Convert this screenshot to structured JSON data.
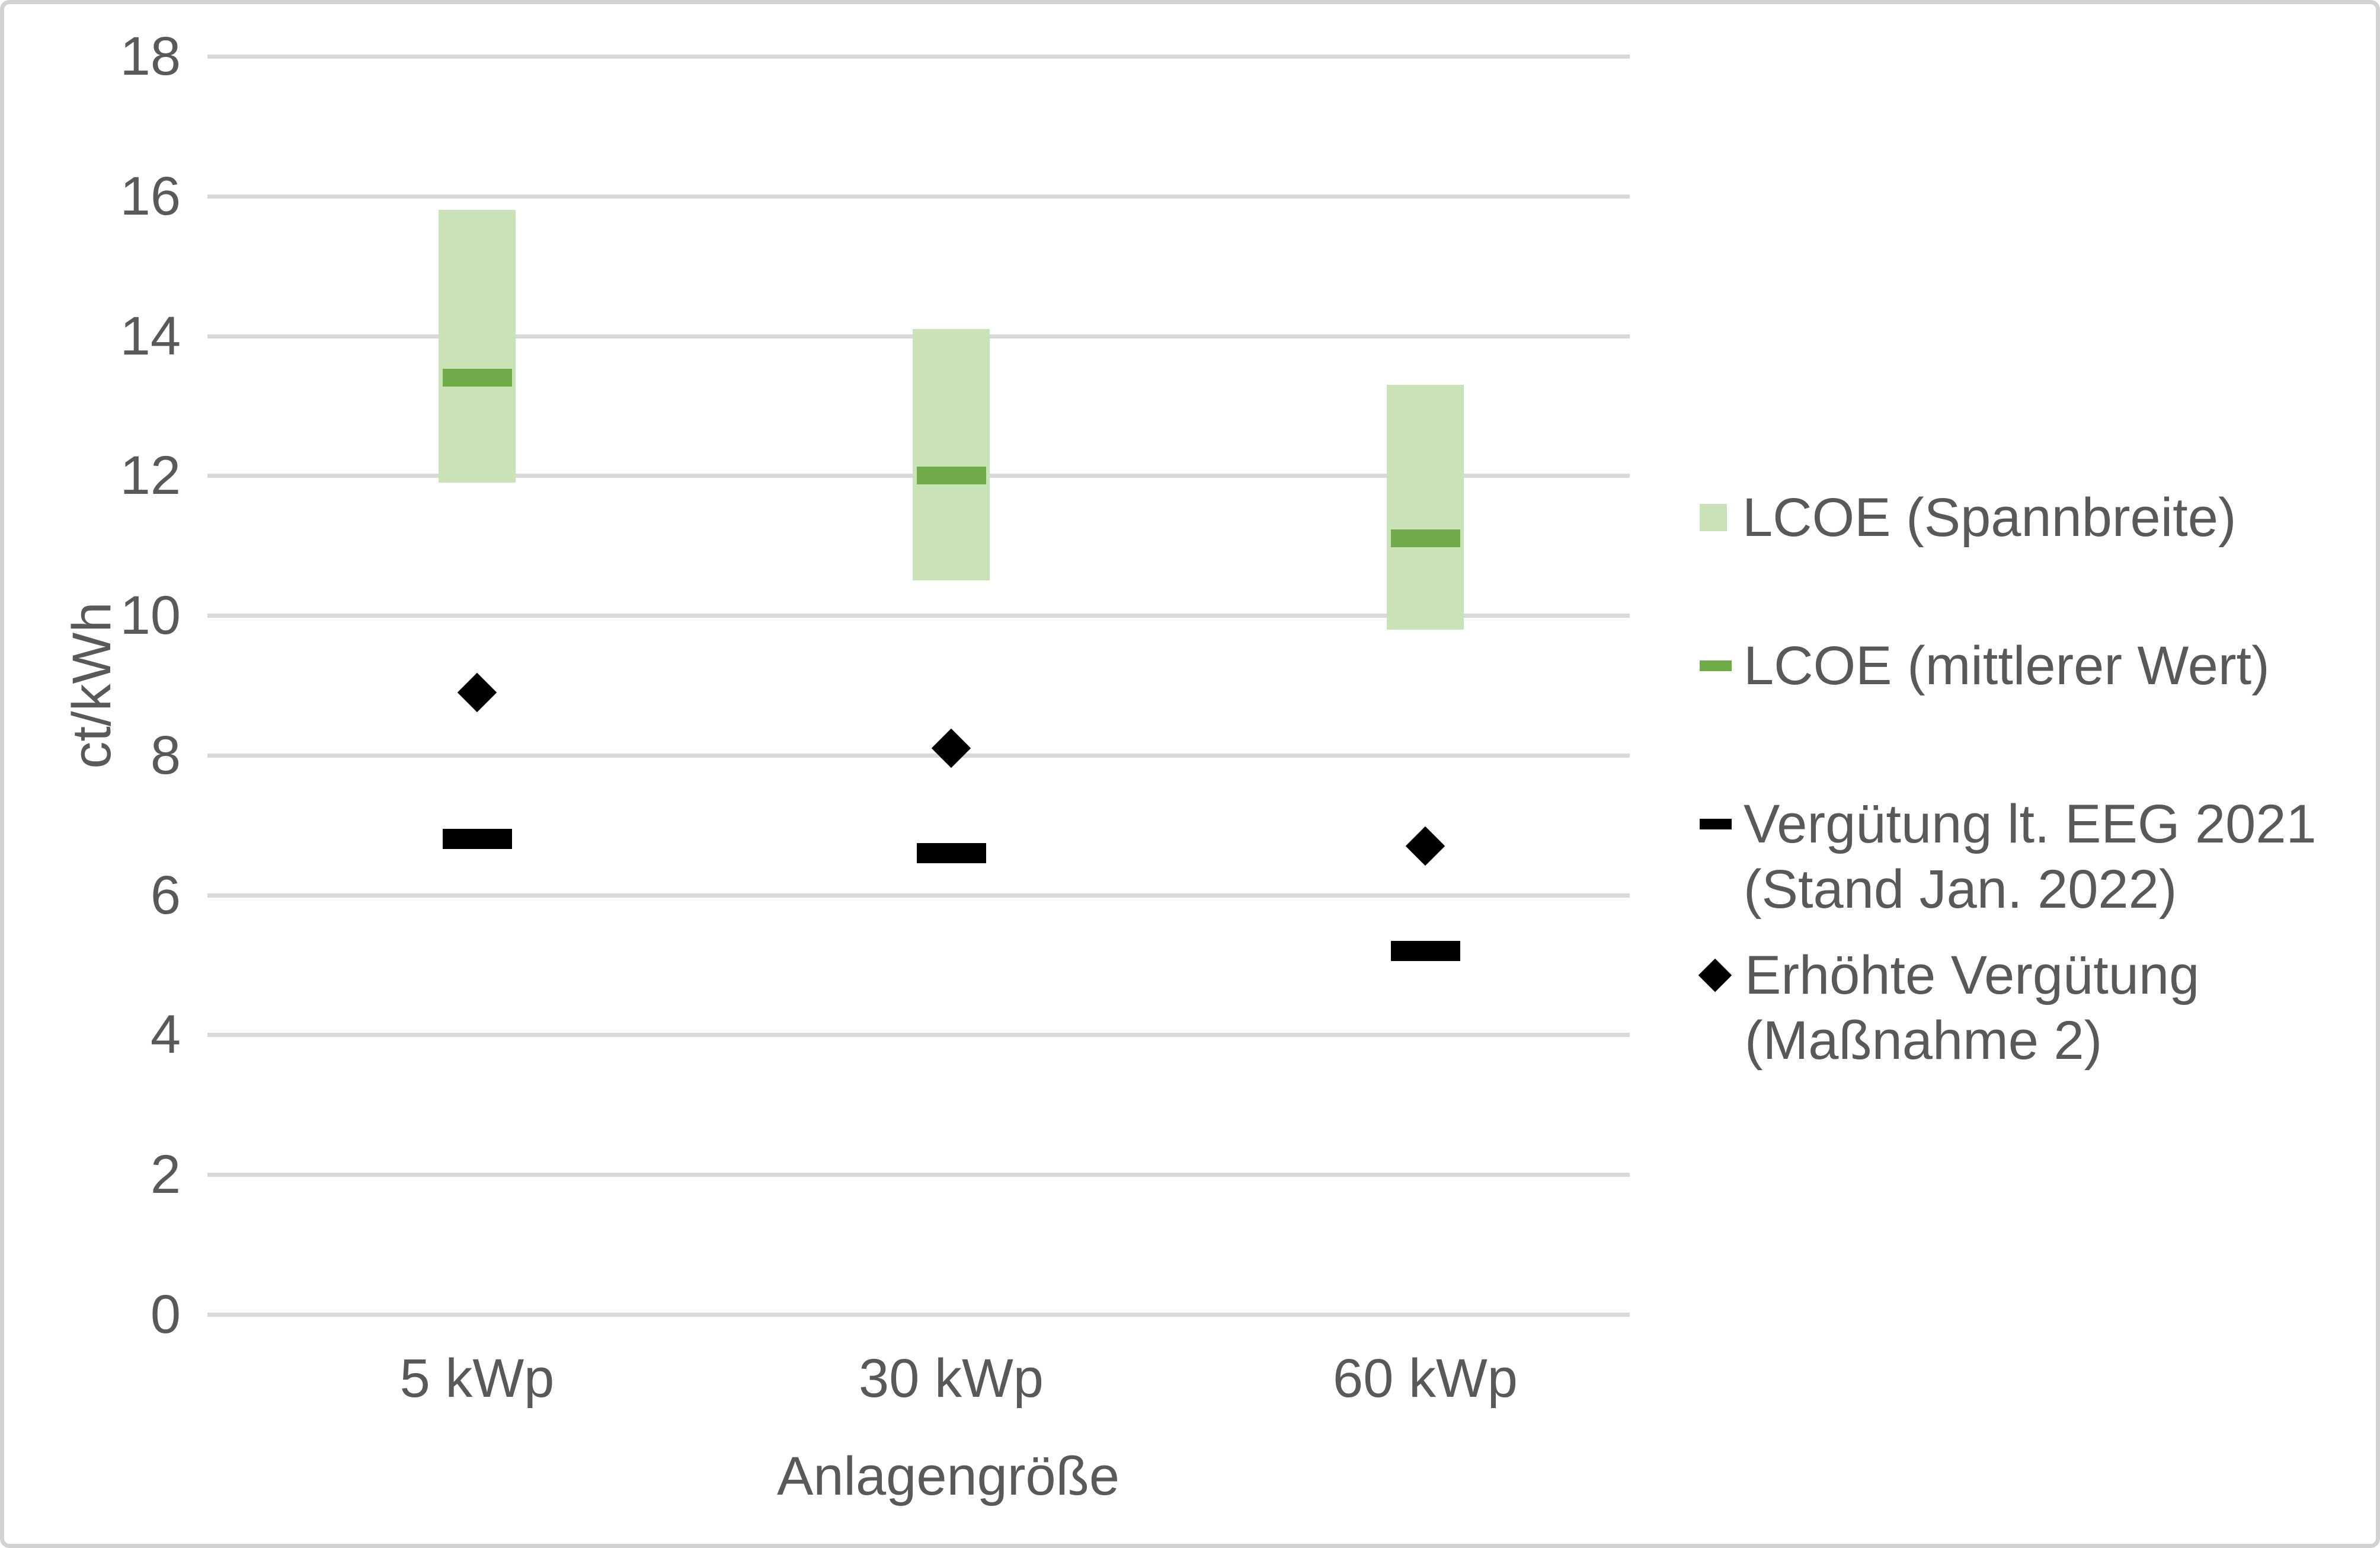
{
  "chart_data": {
    "type": "bar",
    "subtype": "floating-range-bars-with-markers",
    "categories": [
      "5 kWp",
      "30 kWp",
      "60 kWp"
    ],
    "series": [
      {
        "name": "LCOE (Spannbreite)",
        "mark": "range-bar",
        "low": [
          11.9,
          10.5,
          9.8
        ],
        "high": [
          15.8,
          14.1,
          13.3
        ],
        "color": "#c9e2b6"
      },
      {
        "name": "LCOE (mittlerer Wert)",
        "mark": "dash",
        "values": [
          13.4,
          12.0,
          11.1
        ],
        "color": "#6fac49"
      },
      {
        "name": "Vergütung lt. EEG 2021 (Stand Jan. 2022)",
        "mark": "dash",
        "values": [
          6.8,
          6.6,
          5.2
        ],
        "color": "#000000"
      },
      {
        "name": "Erhöhte Vergütung (Maßnahme 2)",
        "mark": "diamond",
        "values": [
          8.9,
          8.1,
          6.7
        ],
        "color": "#000000"
      }
    ],
    "title": "",
    "xlabel": "Anlagengröße",
    "ylabel": "ct/kWh",
    "ylim": [
      0,
      18
    ],
    "yticks": [
      0,
      2,
      4,
      6,
      8,
      10,
      12,
      14,
      16,
      18
    ],
    "grid": true,
    "legend_position": "right",
    "colors": {
      "grid": "#d9d9d9",
      "text": "#595959",
      "frame": "#d2d2d2"
    }
  }
}
